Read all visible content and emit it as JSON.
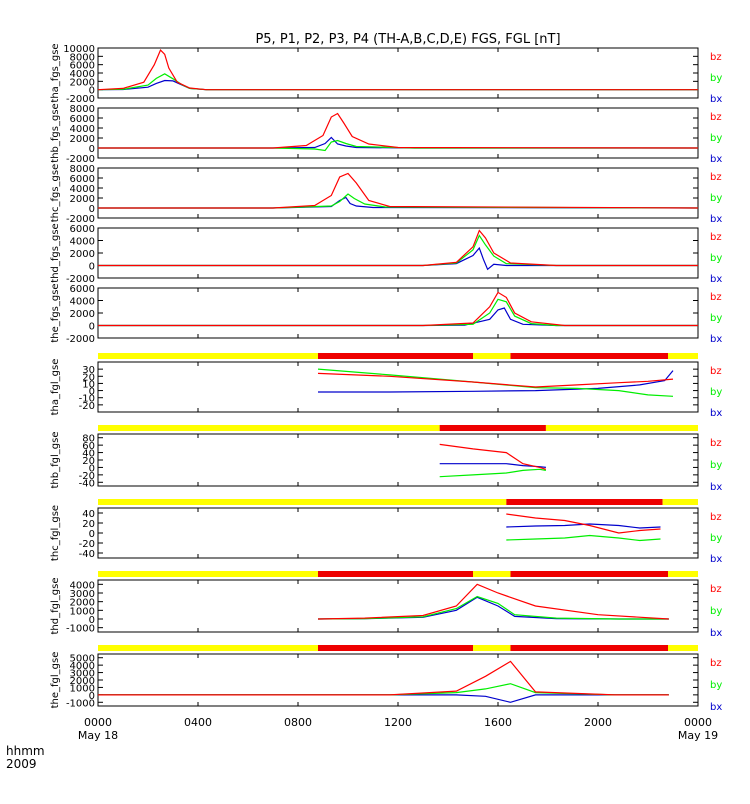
{
  "title": "P5, P1, P2, P3, P4 (TH-A,B,C,D,E) FGS, FGL [nT]",
  "axis_corner": {
    "line1": "hhmm",
    "line2": "2009"
  },
  "x_ticks": [
    {
      "value": 0,
      "label": "0000",
      "sub": "May 18"
    },
    {
      "value": 240,
      "label": "0400",
      "sub": ""
    },
    {
      "value": 480,
      "label": "0800",
      "sub": ""
    },
    {
      "value": 720,
      "label": "1200",
      "sub": ""
    },
    {
      "value": 960,
      "label": "1600",
      "sub": ""
    },
    {
      "value": 1200,
      "label": "2000",
      "sub": ""
    },
    {
      "value": 1440,
      "label": "0000",
      "sub": "May 19"
    }
  ],
  "legend_labels": [
    "bz",
    "by",
    "bx"
  ],
  "colors": {
    "bz": "#ff0000",
    "by": "#00ee00",
    "bx": "#0000cc",
    "bar_yellow": "#ffff00",
    "bar_red": "#ee0000"
  },
  "chart_data": [
    {
      "type": "line",
      "ylabel": "tha_fgs_gse",
      "ylim": [
        -2000,
        10000
      ],
      "yticks": [
        -2000,
        0,
        2000,
        4000,
        6000,
        8000,
        10000
      ],
      "series": [
        {
          "name": "bx",
          "x": [
            0,
            60,
            120,
            140,
            160,
            180,
            200,
            220,
            260,
            1440
          ],
          "values": [
            0,
            50,
            600,
            1500,
            2200,
            2100,
            1200,
            300,
            0,
            0
          ]
        },
        {
          "name": "by",
          "x": [
            0,
            60,
            120,
            140,
            160,
            180,
            200,
            220,
            260,
            1440
          ],
          "values": [
            0,
            100,
            1100,
            2700,
            3800,
            2600,
            1300,
            300,
            0,
            0
          ]
        },
        {
          "name": "bz",
          "x": [
            0,
            60,
            110,
            135,
            150,
            160,
            170,
            190,
            220,
            260,
            1440
          ],
          "values": [
            0,
            300,
            1800,
            6000,
            9500,
            8500,
            5200,
            1800,
            400,
            0,
            0
          ]
        }
      ]
    },
    {
      "type": "line",
      "ylabel": "thb_fgs_gse",
      "ylim": [
        -2000,
        8000
      ],
      "yticks": [
        -2000,
        0,
        2000,
        4000,
        6000,
        8000
      ],
      "series": [
        {
          "name": "bx",
          "x": [
            0,
            420,
            520,
            545,
            560,
            575,
            595,
            620,
            760,
            1440
          ],
          "values": [
            0,
            0,
            100,
            900,
            2100,
            800,
            400,
            100,
            0,
            0
          ]
        },
        {
          "name": "by",
          "x": [
            0,
            420,
            520,
            545,
            560,
            575,
            595,
            620,
            760,
            1440
          ],
          "values": [
            0,
            0,
            -200,
            -500,
            1200,
            1500,
            900,
            300,
            0,
            0
          ]
        },
        {
          "name": "bz",
          "x": [
            0,
            420,
            500,
            540,
            560,
            575,
            590,
            610,
            650,
            720,
            1440
          ],
          "values": [
            0,
            0,
            500,
            2500,
            6200,
            6900,
            5000,
            2300,
            800,
            100,
            0
          ]
        }
      ]
    },
    {
      "type": "line",
      "ylabel": "thc_fgs_gse",
      "ylim": [
        -2000,
        8000
      ],
      "yticks": [
        -2000,
        0,
        2000,
        4000,
        6000,
        8000
      ],
      "series": [
        {
          "name": "bx",
          "x": [
            0,
            420,
            560,
            580,
            595,
            605,
            620,
            660,
            1440
          ],
          "values": [
            0,
            0,
            300,
            1500,
            2100,
            900,
            400,
            100,
            0
          ]
        },
        {
          "name": "by",
          "x": [
            0,
            420,
            560,
            580,
            600,
            615,
            640,
            690,
            1440
          ],
          "values": [
            0,
            0,
            400,
            1300,
            2800,
            1900,
            800,
            200,
            0
          ]
        },
        {
          "name": "bz",
          "x": [
            0,
            420,
            520,
            560,
            580,
            600,
            620,
            650,
            700,
            1440
          ],
          "values": [
            0,
            0,
            500,
            2500,
            6200,
            6900,
            5000,
            1500,
            300,
            0
          ]
        }
      ]
    },
    {
      "type": "line",
      "ylabel": "thd_fgs_gse",
      "ylim": [
        -2000,
        6000
      ],
      "yticks": [
        -2000,
        0,
        2000,
        4000,
        6000
      ],
      "series": [
        {
          "name": "bx",
          "x": [
            0,
            780,
            860,
            900,
            915,
            925,
            935,
            950,
            980,
            1440
          ],
          "values": [
            0,
            0,
            300,
            1600,
            2800,
            1000,
            -600,
            200,
            0,
            0
          ]
        },
        {
          "name": "by",
          "x": [
            0,
            780,
            860,
            900,
            915,
            930,
            950,
            980,
            1100,
            1440
          ],
          "values": [
            0,
            0,
            400,
            2500,
            4800,
            3300,
            1500,
            300,
            0,
            0
          ]
        },
        {
          "name": "bz",
          "x": [
            0,
            780,
            860,
            900,
            915,
            930,
            950,
            990,
            1100,
            1440
          ],
          "values": [
            0,
            0,
            500,
            3000,
            5600,
            4400,
            2000,
            400,
            0,
            0
          ]
        }
      ]
    },
    {
      "type": "line",
      "ylabel": "the_fgs_gse",
      "ylim": [
        -2000,
        6000
      ],
      "yticks": [
        -2000,
        0,
        2000,
        4000,
        6000
      ],
      "series": [
        {
          "name": "bx",
          "x": [
            0,
            780,
            880,
            940,
            960,
            975,
            990,
            1020,
            1100,
            1440
          ],
          "values": [
            0,
            0,
            50,
            1000,
            2500,
            2800,
            1000,
            200,
            0,
            0
          ]
        },
        {
          "name": "by",
          "x": [
            0,
            780,
            900,
            940,
            960,
            980,
            1000,
            1040,
            1100,
            1440
          ],
          "values": [
            0,
            0,
            200,
            2000,
            4200,
            3800,
            1500,
            300,
            0,
            0
          ]
        },
        {
          "name": "bz",
          "x": [
            0,
            780,
            900,
            940,
            960,
            980,
            1000,
            1040,
            1120,
            1440
          ],
          "values": [
            0,
            0,
            400,
            3000,
            5300,
            4500,
            2000,
            600,
            0,
            0
          ]
        }
      ]
    },
    {
      "type": "line",
      "ylabel": "tha_fgl_gse",
      "ylim": [
        -30,
        40
      ],
      "yticks": [
        -20,
        -10,
        0,
        10,
        20,
        30
      ],
      "status_bar": [
        {
          "from": 0,
          "to": 528,
          "color": "yellow"
        },
        {
          "from": 528,
          "to": 900,
          "color": "red"
        },
        {
          "from": 900,
          "to": 990,
          "color": "yellow"
        },
        {
          "from": 990,
          "to": 1368,
          "color": "red"
        },
        {
          "from": 1368,
          "to": 1440,
          "color": "yellow"
        }
      ],
      "series": [
        {
          "name": "bx",
          "x": [
            528,
            700,
            900,
            1050,
            1200,
            1300,
            1360,
            1380
          ],
          "values": [
            -2,
            -2,
            -1,
            0,
            3,
            8,
            14,
            28
          ]
        },
        {
          "name": "by",
          "x": [
            528,
            700,
            900,
            1050,
            1150,
            1250,
            1320,
            1380
          ],
          "values": [
            30,
            22,
            12,
            4,
            3,
            0,
            -6,
            -8
          ]
        },
        {
          "name": "bz",
          "x": [
            528,
            700,
            900,
            1050,
            1150,
            1250,
            1320,
            1380
          ],
          "values": [
            24,
            20,
            12,
            5,
            8,
            11,
            13,
            16
          ]
        }
      ]
    },
    {
      "type": "line",
      "ylabel": "thb_fgl_gse",
      "ylim": [
        -50,
        90
      ],
      "yticks": [
        -40,
        -20,
        0,
        20,
        40,
        60,
        80
      ],
      "status_bar": [
        {
          "from": 0,
          "to": 820,
          "color": "yellow"
        },
        {
          "from": 820,
          "to": 1075,
          "color": "red"
        },
        {
          "from": 1075,
          "to": 1440,
          "color": "yellow"
        }
      ],
      "series": [
        {
          "name": "bx",
          "x": [
            820,
            900,
            980,
            1020,
            1060,
            1075
          ],
          "values": [
            10,
            10,
            10,
            5,
            2,
            0
          ]
        },
        {
          "name": "by",
          "x": [
            820,
            900,
            980,
            1020,
            1060,
            1075
          ],
          "values": [
            -25,
            -20,
            -15,
            -8,
            -5,
            -8
          ]
        },
        {
          "name": "bz",
          "x": [
            820,
            900,
            980,
            1020,
            1060,
            1075
          ],
          "values": [
            62,
            50,
            40,
            10,
            0,
            -5
          ]
        }
      ]
    },
    {
      "type": "line",
      "ylabel": "thc_fgl_gse",
      "ylim": [
        -50,
        50
      ],
      "yticks": [
        -40,
        -20,
        0,
        20,
        40
      ],
      "status_bar": [
        {
          "from": 0,
          "to": 980,
          "color": "yellow"
        },
        {
          "from": 980,
          "to": 1355,
          "color": "red"
        },
        {
          "from": 1355,
          "to": 1440,
          "color": "yellow"
        }
      ],
      "series": [
        {
          "name": "bx",
          "x": [
            980,
            1050,
            1120,
            1180,
            1250,
            1300,
            1350
          ],
          "values": [
            12,
            14,
            15,
            18,
            15,
            10,
            12
          ]
        },
        {
          "name": "by",
          "x": [
            980,
            1050,
            1120,
            1180,
            1250,
            1300,
            1350
          ],
          "values": [
            -14,
            -12,
            -10,
            -5,
            -10,
            -15,
            -12
          ]
        },
        {
          "name": "bz",
          "x": [
            980,
            1050,
            1120,
            1180,
            1250,
            1300,
            1350
          ],
          "values": [
            38,
            30,
            25,
            15,
            0,
            5,
            8
          ]
        }
      ]
    },
    {
      "type": "line",
      "ylabel": "thd_fgl_gse",
      "ylim": [
        -1500,
        4500
      ],
      "yticks": [
        -1000,
        0,
        1000,
        2000,
        3000,
        4000
      ],
      "status_bar": [
        {
          "from": 0,
          "to": 528,
          "color": "yellow"
        },
        {
          "from": 528,
          "to": 900,
          "color": "red"
        },
        {
          "from": 900,
          "to": 990,
          "color": "yellow"
        },
        {
          "from": 990,
          "to": 1368,
          "color": "red"
        },
        {
          "from": 1368,
          "to": 1440,
          "color": "yellow"
        }
      ],
      "series": [
        {
          "name": "bx",
          "x": [
            528,
            640,
            780,
            860,
            910,
            960,
            1000,
            1100,
            1250,
            1370
          ],
          "values": [
            0,
            50,
            200,
            1000,
            2500,
            1500,
            300,
            50,
            0,
            0
          ]
        },
        {
          "name": "by",
          "x": [
            528,
            640,
            780,
            860,
            910,
            960,
            1000,
            1100,
            1250,
            1370
          ],
          "values": [
            0,
            50,
            250,
            1200,
            2600,
            1800,
            500,
            100,
            0,
            0
          ]
        },
        {
          "name": "bz",
          "x": [
            528,
            640,
            780,
            860,
            910,
            960,
            1050,
            1200,
            1370
          ],
          "values": [
            0,
            100,
            400,
            1500,
            4000,
            3000,
            1500,
            500,
            0
          ]
        }
      ]
    },
    {
      "type": "line",
      "ylabel": "the_fgl_gse",
      "ylim": [
        -1500,
        5500
      ],
      "yticks": [
        -1000,
        0,
        1000,
        2000,
        3000,
        4000,
        5000
      ],
      "status_bar": [
        {
          "from": 0,
          "to": 528,
          "color": "yellow"
        },
        {
          "from": 528,
          "to": 900,
          "color": "red"
        },
        {
          "from": 900,
          "to": 990,
          "color": "yellow"
        },
        {
          "from": 990,
          "to": 1368,
          "color": "red"
        },
        {
          "from": 1368,
          "to": 1440,
          "color": "yellow"
        }
      ],
      "series": [
        {
          "name": "bx",
          "x": [
            0,
            700,
            860,
            930,
            990,
            1050,
            1240,
            1370
          ],
          "values": [
            0,
            0,
            0,
            -200,
            -1000,
            0,
            0,
            0
          ]
        },
        {
          "name": "by",
          "x": [
            0,
            700,
            860,
            930,
            990,
            1050,
            1240,
            1370
          ],
          "values": [
            0,
            0,
            300,
            800,
            1500,
            300,
            0,
            0
          ]
        },
        {
          "name": "bz",
          "x": [
            0,
            700,
            860,
            930,
            990,
            1050,
            1240,
            1370
          ],
          "values": [
            0,
            0,
            500,
            2500,
            4500,
            400,
            0,
            0
          ]
        }
      ]
    }
  ]
}
